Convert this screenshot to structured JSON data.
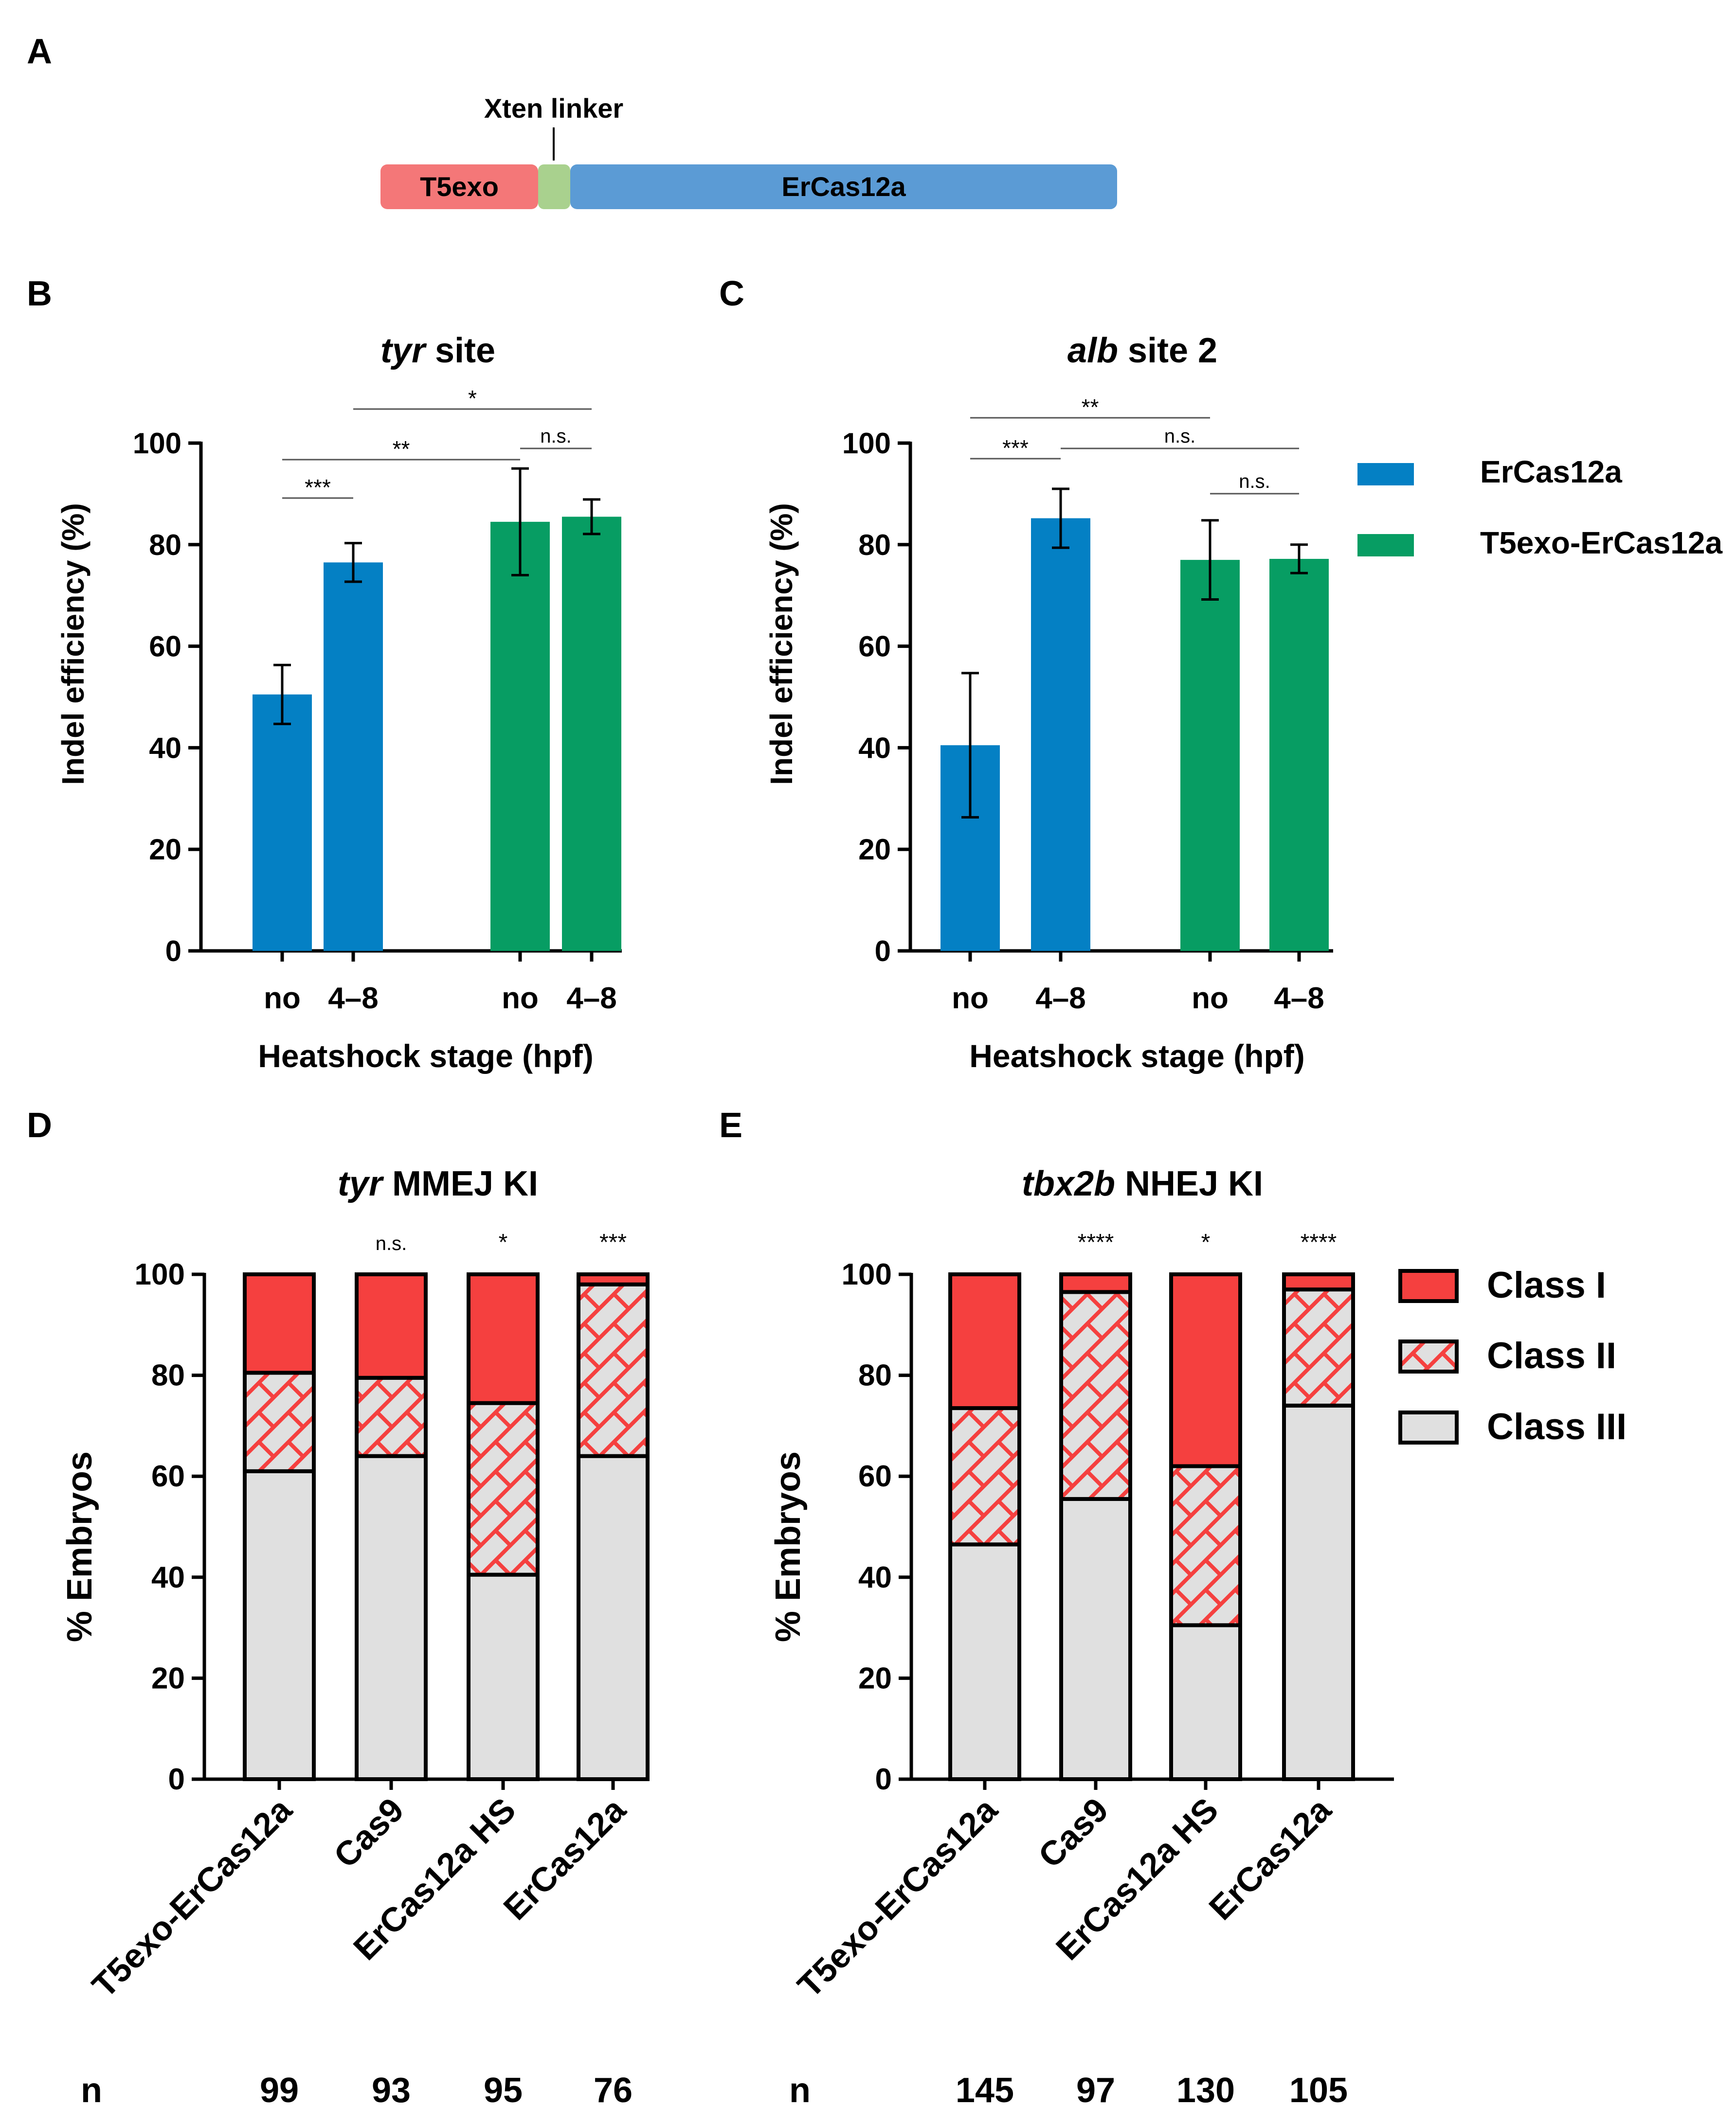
{
  "colors": {
    "ercas": "#0480C4",
    "t5": "#079D63",
    "class1": "#F5403F",
    "class2_line": "#F5403F",
    "class3": "#E0E0E0",
    "t5exo_box": "#F47778",
    "linker_box": "#A9D18E",
    "ercas_box": "#5B9BD5"
  },
  "panelA": {
    "letter": "A",
    "linker_label": "Xten linker",
    "t5exo_label": "T5exo",
    "ercas_label": "ErCas12a"
  },
  "legend_bc": {
    "items": [
      "ErCas12a",
      "T5exo-ErCas12a"
    ]
  },
  "legend_de": {
    "items": [
      "Class I",
      "Class II",
      "Class III"
    ]
  },
  "chart_data": [
    {
      "panel": "B",
      "type": "bar",
      "title_italic": "tyr",
      "title_rest": " site",
      "xlabel": "Heatshock stage (hpf)",
      "ylabel": "Indel efficiency (%)",
      "ylim": [
        0,
        100
      ],
      "yticks": [
        0,
        20,
        40,
        60,
        80,
        100
      ],
      "categories": [
        "no",
        "4–8",
        "no",
        "4–8"
      ],
      "bars": [
        {
          "label": "no",
          "series": "ErCas12a",
          "value": 50.5,
          "error": 5.8
        },
        {
          "label": "4–8",
          "series": "ErCas12a",
          "value": 76.5,
          "error": 3.8
        },
        {
          "label": "no",
          "series": "T5exo-ErCas12a",
          "value": 84.5,
          "error": 10.5
        },
        {
          "label": "4–8",
          "series": "T5exo-ErCas12a",
          "value": 85.5,
          "error": 3.4
        }
      ],
      "significance": [
        {
          "from": 1,
          "to": 3,
          "label": "*"
        },
        {
          "from": 0,
          "to": 2,
          "label": "**"
        },
        {
          "from": 2,
          "to": 3,
          "label": "n.s."
        },
        {
          "from": 0,
          "to": 1,
          "label": "***"
        }
      ]
    },
    {
      "panel": "C",
      "type": "bar",
      "title_italic": "alb",
      "title_rest": " site 2",
      "xlabel": "Heatshock stage (hpf)",
      "ylabel": "Indel efficiency (%)",
      "ylim": [
        0,
        100
      ],
      "yticks": [
        0,
        20,
        40,
        60,
        80,
        100
      ],
      "categories": [
        "no",
        "4–8",
        "no",
        "4–8"
      ],
      "bars": [
        {
          "label": "no",
          "series": "ErCas12a",
          "value": 40.5,
          "error": 14.2
        },
        {
          "label": "4–8",
          "series": "ErCas12a",
          "value": 85.2,
          "error": 5.8
        },
        {
          "label": "no",
          "series": "T5exo-ErCas12a",
          "value": 77.0,
          "error": 7.8
        },
        {
          "label": "4–8",
          "series": "T5exo-ErCas12a",
          "value": 77.2,
          "error": 2.8
        }
      ],
      "significance": [
        {
          "from": 0,
          "to": 2,
          "label": "**"
        },
        {
          "from": 1,
          "to": 3,
          "label": "n.s."
        },
        {
          "from": 0,
          "to": 1,
          "label": "***"
        },
        {
          "from": 2,
          "to": 3,
          "label": "n.s."
        }
      ]
    },
    {
      "panel": "D",
      "type": "stacked_bar",
      "title_italic": "tyr",
      "title_rest": " MMEJ KI",
      "ylabel": "% Embryos",
      "ylim": [
        0,
        100
      ],
      "yticks": [
        0,
        20,
        40,
        60,
        80,
        100
      ],
      "categories": [
        "T5exo-ErCas12a",
        "Cas9",
        "ErCas12a HS",
        "ErCas12a"
      ],
      "series": [
        {
          "name": "Class III",
          "values": [
            61,
            64,
            40.5,
            64
          ]
        },
        {
          "name": "Class II",
          "values": [
            19.5,
            15.5,
            34,
            34
          ]
        },
        {
          "name": "Class I",
          "values": [
            19.5,
            20.5,
            25.5,
            2
          ]
        }
      ],
      "significance": [
        "",
        "n.s.",
        "*",
        "***"
      ],
      "n_label": "n",
      "n": [
        "99",
        "93",
        "95",
        "76"
      ]
    },
    {
      "panel": "E",
      "type": "stacked_bar",
      "title_italic": "tbx2b",
      "title_rest": " NHEJ KI",
      "ylabel": "% Embryos",
      "ylim": [
        0,
        100
      ],
      "yticks": [
        0,
        20,
        40,
        60,
        80,
        100
      ],
      "categories": [
        "T5exo-ErCas12a",
        "Cas9",
        "ErCas12a HS",
        "ErCas12a"
      ],
      "series": [
        {
          "name": "Class III",
          "values": [
            46.5,
            55.5,
            30.5,
            74
          ]
        },
        {
          "name": "Class II",
          "values": [
            27,
            41,
            31.5,
            23
          ]
        },
        {
          "name": "Class I",
          "values": [
            26.5,
            3.5,
            38,
            3
          ]
        }
      ],
      "significance": [
        "",
        "****",
        "*",
        "****"
      ],
      "n_label": "n",
      "n": [
        "145",
        "97",
        "130",
        "105"
      ]
    }
  ]
}
